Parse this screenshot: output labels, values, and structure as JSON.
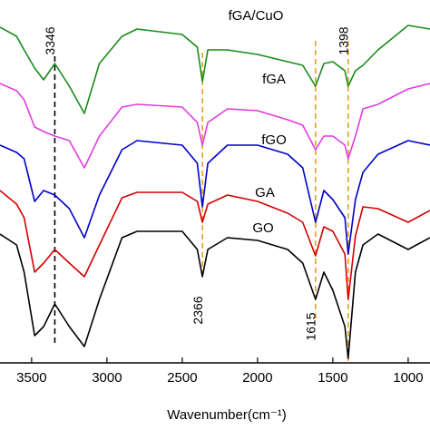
{
  "chart_data": {
    "type": "line",
    "xlabel": "Wavenumber(cm⁻¹)",
    "x": [
      3710,
      3600,
      3550,
      3480,
      3420,
      3346,
      3250,
      3150,
      3050,
      2900,
      2800,
      2500,
      2400,
      2366,
      2330,
      2200,
      2000,
      1800,
      1700,
      1615,
      1560,
      1500,
      1420,
      1398,
      1350,
      1300,
      1200,
      1000,
      855
    ],
    "xlim": [
      3710,
      855
    ],
    "xticks": [
      3500,
      3000,
      2500,
      2000,
      1500,
      1000
    ],
    "ylim": [
      0,
      400
    ],
    "series": [
      {
        "name": "GO",
        "color": "#000000",
        "values": [
          142,
          130,
          100,
          30,
          40,
          65,
          40,
          18,
          70,
          138,
          145,
          145,
          125,
          95,
          125,
          138,
          135,
          125,
          110,
          70,
          100,
          80,
          40,
          5,
          100,
          130,
          142,
          125,
          138
        ]
      },
      {
        "name": "GA",
        "color": "#d40000",
        "values": [
          190,
          175,
          160,
          100,
          110,
          125,
          110,
          95,
          130,
          182,
          188,
          188,
          178,
          155,
          175,
          185,
          178,
          165,
          155,
          118,
          150,
          145,
          120,
          70,
          140,
          172,
          170,
          155,
          168
        ]
      },
      {
        "name": "fGO",
        "color": "#0000c8",
        "values": [
          240,
          232,
          225,
          178,
          190,
          185,
          170,
          138,
          185,
          235,
          245,
          240,
          220,
          172,
          220,
          240,
          240,
          230,
          215,
          155,
          190,
          180,
          160,
          120,
          180,
          210,
          230,
          245,
          240
        ]
      },
      {
        "name": "fGA",
        "color": "#e03ce0",
        "values": [
          308,
          300,
          290,
          260,
          255,
          250,
          245,
          215,
          250,
          282,
          285,
          282,
          265,
          240,
          265,
          280,
          278,
          268,
          262,
          235,
          250,
          250,
          240,
          225,
          250,
          280,
          285,
          302,
          308
        ]
      },
      {
        "name": "fGA/CuO",
        "color": "#1a8a1a",
        "values": [
          370,
          360,
          345,
          325,
          312,
          330,
          305,
          275,
          330,
          360,
          368,
          362,
          348,
          310,
          345,
          345,
          340,
          332,
          328,
          305,
          330,
          332,
          322,
          305,
          322,
          328,
          345,
          372,
          368
        ]
      }
    ],
    "annotations": [
      {
        "x": 3346,
        "color": "#000000"
      },
      {
        "x": 2366,
        "color": "#e8a020"
      },
      {
        "x": 1615,
        "color": "#e8a020"
      },
      {
        "x": 1398,
        "color": "#e8a020"
      }
    ]
  }
}
